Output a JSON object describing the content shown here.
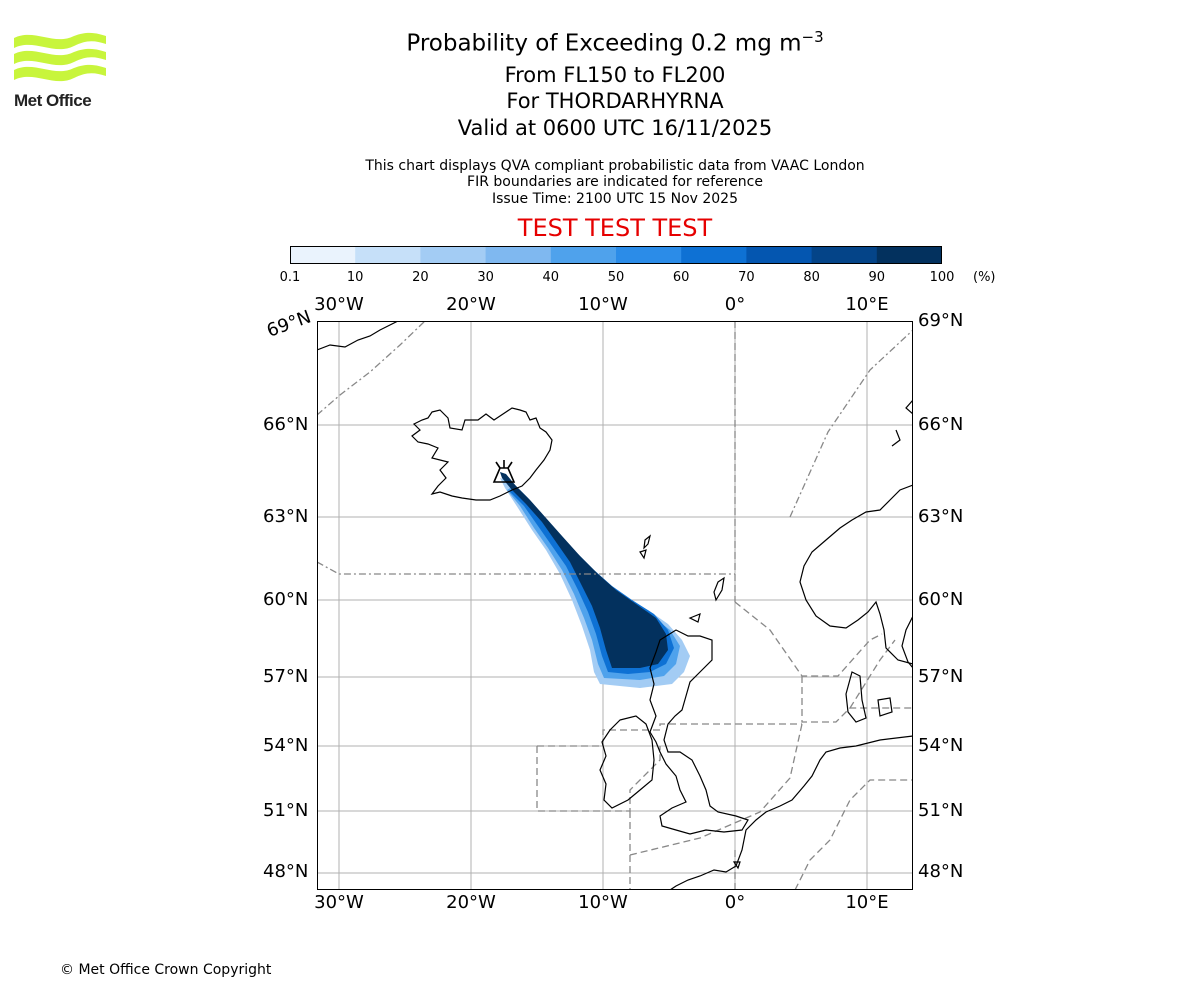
{
  "header": {
    "title_prefix": "Probability of Exceeding 0.2 mg m",
    "title_exponent": "−3",
    "level": "From FL150 to FL200",
    "volcano": "For THORDARHYRNA",
    "valid": "Valid at 0600 UTC 16/11/2025",
    "note1": "This chart displays QVA compliant probabilistic data from VAAC London",
    "note2": "FIR boundaries are indicated for reference",
    "issue": "Issue Time: 2100 UTC 15 Nov 2025",
    "test_banner": "TEST TEST TEST"
  },
  "logo": {
    "text": "Met Office",
    "color": "#c8f53c"
  },
  "colorbar": {
    "ticks": [
      "0.1",
      "10",
      "20",
      "30",
      "40",
      "50",
      "60",
      "70",
      "80",
      "90",
      "100"
    ],
    "unit": "(%)",
    "colors": [
      "#eaf3fd",
      "#c6e0f9",
      "#a3ccf4",
      "#7fb8f0",
      "#4fa2ec",
      "#2b8ce8",
      "#0e71d4",
      "#0456b0",
      "#044488",
      "#03315e"
    ]
  },
  "map": {
    "lon_labels": [
      "30°W",
      "20°W",
      "10°W",
      "0°",
      "10°E"
    ],
    "lat_labels_left": [
      "66°N",
      "63°N",
      "60°N",
      "57°N",
      "54°N",
      "51°N",
      "48°N"
    ],
    "lat_labels_right": [
      "69°N",
      "66°N",
      "63°N",
      "60°N",
      "57°N",
      "54°N",
      "51°N",
      "48°N"
    ],
    "corner_lat_label": "69°N",
    "grid_color": "#b0b0b0",
    "volcano_icon": "volcano-icon"
  },
  "chart_data": {
    "type": "heatmap",
    "title": "Probability of Exceeding 0.2 mg m-3",
    "units": "%",
    "levels": [
      0.1,
      10,
      20,
      30,
      40,
      50,
      60,
      70,
      80,
      90,
      100
    ],
    "plume": [
      {
        "lon": -18.3,
        "lat": 64.4,
        "p": 95
      },
      {
        "lon": -17.0,
        "lat": 63.8,
        "p": 95
      },
      {
        "lon": -15.5,
        "lat": 63.0,
        "p": 95
      },
      {
        "lon": -14.0,
        "lat": 62.0,
        "p": 95
      },
      {
        "lon": -12.5,
        "lat": 60.8,
        "p": 95
      },
      {
        "lon": -11.0,
        "lat": 59.5,
        "p": 95
      },
      {
        "lon": -9.0,
        "lat": 58.3,
        "p": 95
      },
      {
        "lon": -7.5,
        "lat": 57.6,
        "p": 90
      }
    ]
  },
  "footer": {
    "copyright": "© Met Office Crown Copyright"
  }
}
